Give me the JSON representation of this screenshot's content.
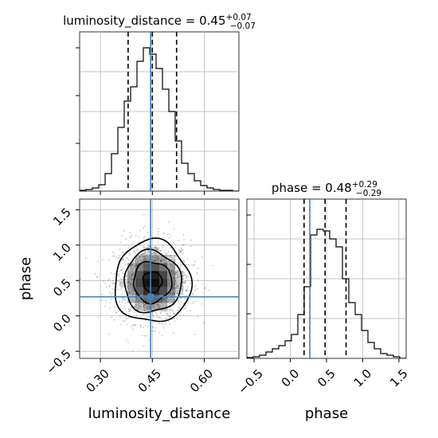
{
  "chart_data": [
    {
      "type": "histogram",
      "panel": "luminosity_distance-marginal",
      "title": {
        "param": "luminosity_distance",
        "value": "0.45",
        "plus": "+0.07",
        "minus": "−0.07"
      },
      "xlim": [
        0.24,
        0.7
      ],
      "bins": [
        0.24,
        0.2584,
        0.2768,
        0.2952,
        0.3136,
        0.332,
        0.3504,
        0.3688,
        0.3872,
        0.4056,
        0.424,
        0.4424,
        0.4608,
        0.4792,
        0.4976,
        0.516,
        0.5344,
        0.5528,
        0.5712,
        0.5896,
        0.608,
        0.6264,
        0.6448,
        0.6632,
        0.6816,
        0.7
      ],
      "counts": [
        1,
        2,
        4,
        8,
        22,
        47,
        80,
        113,
        131,
        163,
        180,
        172,
        154,
        128,
        100,
        63,
        35,
        22,
        13,
        7,
        4,
        2,
        1,
        1,
        0
      ],
      "quantiles": [
        0.38,
        0.45,
        0.52
      ],
      "truth": 0.445,
      "ylim": [
        0,
        200
      ]
    },
    {
      "type": "histogram",
      "panel": "phase-marginal",
      "title": {
        "param": "phase",
        "value": "0.48",
        "plus": "+0.29",
        "minus": "−0.29"
      },
      "xlim": [
        -0.6,
        1.6
      ],
      "xticks": [
        -0.5,
        0.0,
        0.5,
        1.0,
        1.5
      ],
      "xtick_labels": [
        "−0.5",
        "0.0",
        "0.5",
        "1.0",
        "1.5"
      ],
      "bins": [
        -0.6,
        -0.512,
        -0.424,
        -0.336,
        -0.248,
        -0.16,
        -0.072,
        0.016,
        0.104,
        0.192,
        0.28,
        0.368,
        0.456,
        0.544,
        0.632,
        0.72,
        0.808,
        0.896,
        0.984,
        1.072,
        1.16,
        1.248,
        1.336,
        1.424,
        1.512,
        1.6
      ],
      "counts": [
        1,
        2,
        4,
        8,
        12,
        16,
        22,
        30,
        55,
        90,
        155,
        162,
        160,
        150,
        140,
        100,
        70,
        55,
        35,
        20,
        12,
        6,
        4,
        2,
        0
      ],
      "quantiles": [
        0.19,
        0.48,
        0.77
      ],
      "truth": 0.27,
      "xlabel": "phase",
      "ylim": [
        0,
        200
      ]
    },
    {
      "type": "heatmap",
      "panel": "joint-density",
      "x_center": 0.45,
      "y_center": 0.48,
      "x_sigma": 0.055,
      "y_sigma": 0.29,
      "xlim": [
        0.24,
        0.7
      ],
      "ylim": [
        -0.6,
        1.65
      ],
      "xticks": [
        0.3,
        0.45,
        0.6
      ],
      "xtick_labels": [
        "0.30",
        "0.45",
        "0.60"
      ],
      "yticks": [
        -0.5,
        0.0,
        0.5,
        1.0,
        1.5
      ],
      "ytick_labels": [
        "−0.5",
        "0.0",
        "0.5",
        "1.0",
        "1.5"
      ],
      "truth": {
        "x": 0.445,
        "y": 0.27
      },
      "xlabel": "luminosity_distance",
      "ylabel": "phase",
      "contour_levels_sigma": [
        0.5,
        1.0,
        1.5,
        2.0
      ]
    }
  ],
  "colors": {
    "truth": "#4682b4",
    "hist": "#000000",
    "grid": "#b0b0b0",
    "quantile": "#000000"
  }
}
